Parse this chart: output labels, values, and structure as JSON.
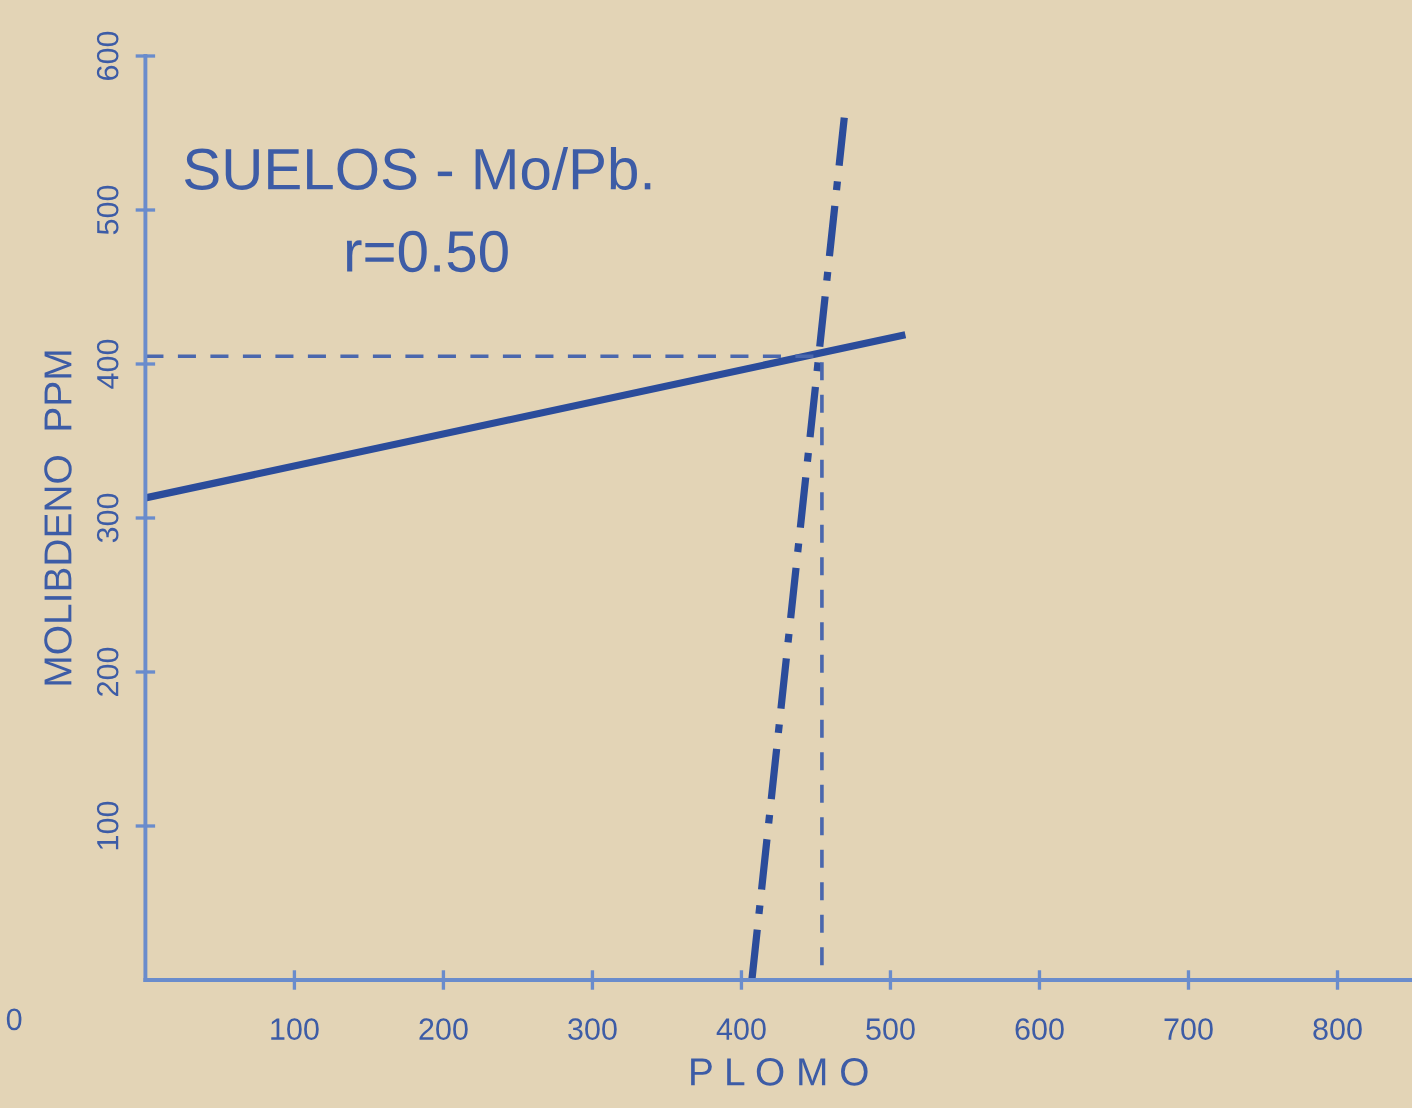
{
  "chart_data": {
    "type": "line",
    "title": "SUELOS - Mo/Pb.",
    "subtitle": "r=0.50",
    "xlabel": "P L O M O",
    "ylabel": "MOLIBDENO  PPM",
    "annotations": [
      "0"
    ],
    "series": [
      {
        "x": [
          0,
          510
        ],
        "values": [
          313,
          419
        ],
        "color": "#2b4c9b",
        "line_style": "solid"
      },
      {
        "x": [
          407,
          469
        ],
        "values": [
          0,
          560
        ],
        "color": "#2b4c9b",
        "line_style": "dashdot"
      },
      {
        "x": [
          0,
          454,
          454
        ],
        "values": [
          405,
          405,
          0
        ],
        "color": "#4a67ad",
        "line_style": "dashed"
      }
    ],
    "xlim": [
      0,
      850
    ],
    "xticks": [
      100,
      200,
      300,
      400,
      500,
      600,
      700,
      800
    ],
    "ylim": [
      0,
      600
    ],
    "yticks": [
      100,
      200,
      300,
      400,
      500,
      600
    ],
    "grid": false,
    "marker": "none"
  }
}
